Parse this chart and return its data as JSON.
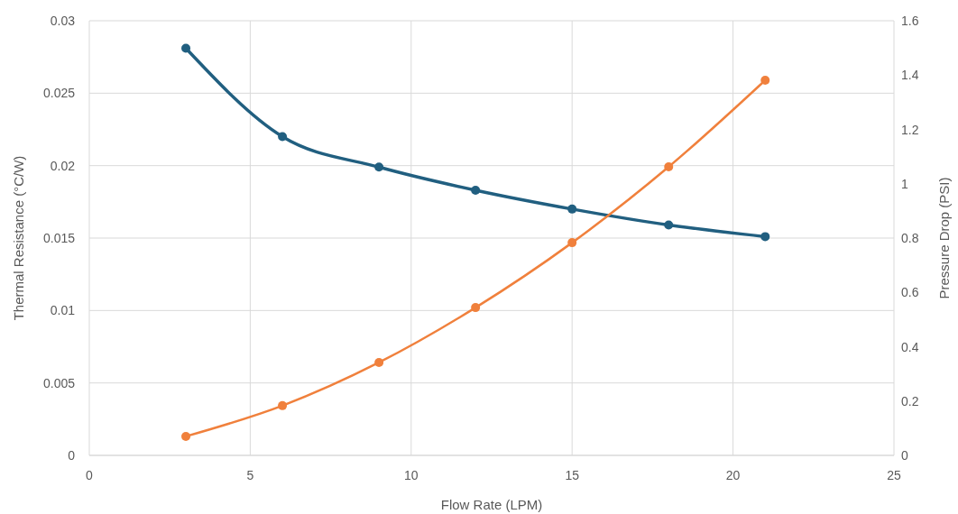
{
  "chart_data": {
    "type": "line",
    "xlabel": "Flow Rate (LPM)",
    "ylabel": "Thermal Resistance (°C/W)",
    "y2label": "Pressure Drop (PSI)",
    "xlim": [
      0,
      25
    ],
    "xticks": [
      0,
      5,
      10,
      15,
      20,
      25
    ],
    "ylim": [
      0,
      0.03
    ],
    "yticks": [
      0,
      0.005,
      0.01,
      0.015,
      0.02,
      0.025,
      0.03
    ],
    "y2lim": [
      0,
      1.6
    ],
    "y2ticks": [
      0,
      0.2,
      0.4,
      0.6,
      0.8,
      1,
      1.2,
      1.4,
      1.6
    ],
    "grid": true,
    "marker": "circle",
    "line_style": "solid",
    "series": [
      {
        "color": "#215f80",
        "x": [
          3,
          6,
          9,
          12,
          15,
          18,
          21
        ],
        "values": [
          0.0281,
          0.022,
          0.0199,
          0.0183,
          0.017,
          0.0159,
          0.0151
        ]
      },
      {
        "color": "#f0803c",
        "axis": "y2",
        "x": [
          3,
          6,
          9,
          12,
          15,
          18,
          21
        ],
        "values": [
          0.07,
          0.183,
          0.342,
          0.544,
          0.783,
          1.062,
          1.381
        ]
      }
    ]
  }
}
